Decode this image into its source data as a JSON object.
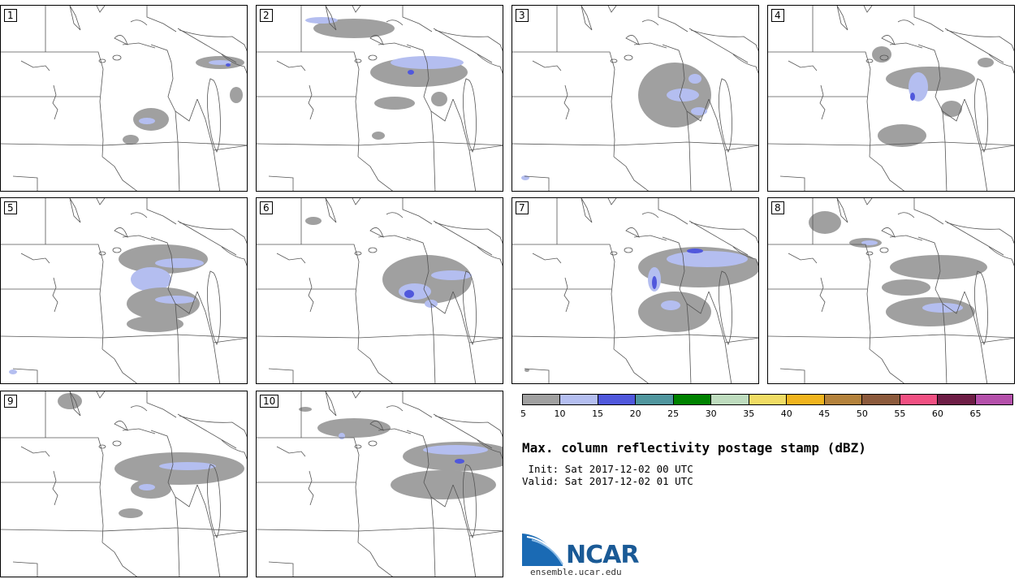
{
  "panels": [
    {
      "label": "1"
    },
    {
      "label": "2"
    },
    {
      "label": "3"
    },
    {
      "label": "4"
    },
    {
      "label": "5"
    },
    {
      "label": "6"
    },
    {
      "label": "7"
    },
    {
      "label": "8"
    },
    {
      "label": "9"
    },
    {
      "label": "10"
    }
  ],
  "legend": {
    "colors": [
      "#a0a0a0",
      "#b4bef0",
      "#5058dc",
      "#50969e",
      "#008200",
      "#bedcbe",
      "#f0dc64",
      "#f0b41e",
      "#b4823c",
      "#8c5a3c",
      "#f05082",
      "#6e1e46",
      "#b450aa"
    ],
    "ticks": [
      "5",
      "10",
      "15",
      "20",
      "25",
      "30",
      "35",
      "40",
      "45",
      "50",
      "55",
      "60",
      "65"
    ]
  },
  "title": "Max. column reflectivity postage stamp (dBZ)",
  "init": " Init: Sat 2017-12-02 00 UTC",
  "valid": "Valid: Sat 2017-12-02 01 UTC",
  "logo": {
    "name": "NCAR",
    "url": "ensemble.ucar.edu"
  }
}
